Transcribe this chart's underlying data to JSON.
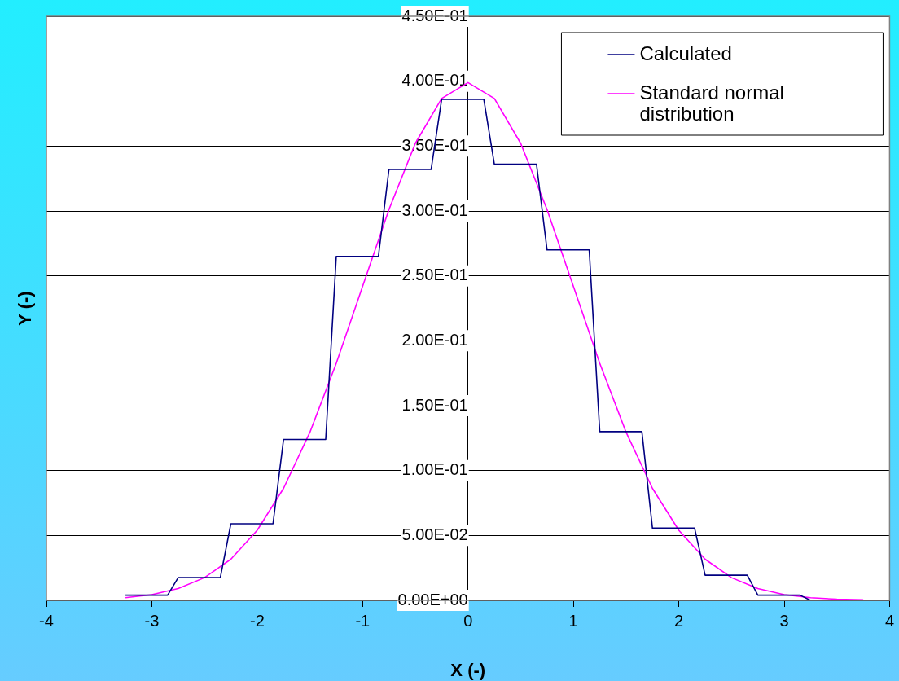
{
  "chart_data": {
    "type": "line",
    "xlabel": "X (-)",
    "ylabel": "Y (-)",
    "series": [
      {
        "name": "Calculated",
        "color": "#000080",
        "x": [
          -3.25,
          -2.85,
          -2.75,
          -2.35,
          -2.25,
          -1.85,
          -1.75,
          -1.35,
          -1.25,
          -0.85,
          -0.75,
          -0.35,
          -0.25,
          0.15,
          0.25,
          0.65,
          0.75,
          1.15,
          1.25,
          1.65,
          1.75,
          2.15,
          2.25,
          2.65,
          2.75,
          3.15,
          3.25
        ],
        "values": [
          0.004,
          0.004,
          0.0175,
          0.0175,
          0.059,
          0.059,
          0.124,
          0.124,
          0.265,
          0.265,
          0.332,
          0.332,
          0.386,
          0.386,
          0.336,
          0.336,
          0.27,
          0.27,
          0.13,
          0.13,
          0.0556,
          0.0556,
          0.0194,
          0.0194,
          0.004,
          0.004,
          0
        ]
      },
      {
        "name": "Standard normal distribution",
        "color": "#ff00ff",
        "x": [
          -3.25,
          -3,
          -2.75,
          -2.5,
          -2.25,
          -2,
          -1.75,
          -1.5,
          -1.25,
          -1,
          -0.75,
          -0.5,
          -0.25,
          0,
          0.25,
          0.5,
          0.75,
          1,
          1.25,
          1.5,
          1.75,
          2,
          2.25,
          2.5,
          2.75,
          3,
          3.25,
          3.5,
          3.75
        ],
        "values": [
          0.002,
          0.0044,
          0.0091,
          0.0175,
          0.0317,
          0.054,
          0.0863,
          0.1295,
          0.1826,
          0.242,
          0.3011,
          0.3521,
          0.3867,
          0.3989,
          0.3867,
          0.3521,
          0.3011,
          0.242,
          0.1826,
          0.1295,
          0.0863,
          0.054,
          0.0317,
          0.0175,
          0.0091,
          0.0044,
          0.002,
          0.0009,
          0.0004
        ]
      }
    ],
    "xlim": [
      -4,
      4
    ],
    "xticks": [
      -4,
      -3,
      -2,
      -1,
      0,
      1,
      2,
      3,
      4
    ],
    "ylim": [
      0,
      0.45
    ],
    "yticks": [
      {
        "value": 0,
        "label": "0.00E+00"
      },
      {
        "value": 0.05,
        "label": "5.00E-02"
      },
      {
        "value": 0.1,
        "label": "1.00E-01"
      },
      {
        "value": 0.15,
        "label": "1.50E-01"
      },
      {
        "value": 0.2,
        "label": "2.00E-01"
      },
      {
        "value": 0.25,
        "label": "2.50E-01"
      },
      {
        "value": 0.3,
        "label": "3.00E-01"
      },
      {
        "value": 0.35,
        "label": "3.50E-01"
      },
      {
        "value": 0.4,
        "label": "4.00E-01"
      },
      {
        "value": 0.45,
        "label": "4.50E-01"
      }
    ],
    "grid": "y",
    "legend": "top right",
    "marker": "none",
    "line_style": "solid"
  }
}
